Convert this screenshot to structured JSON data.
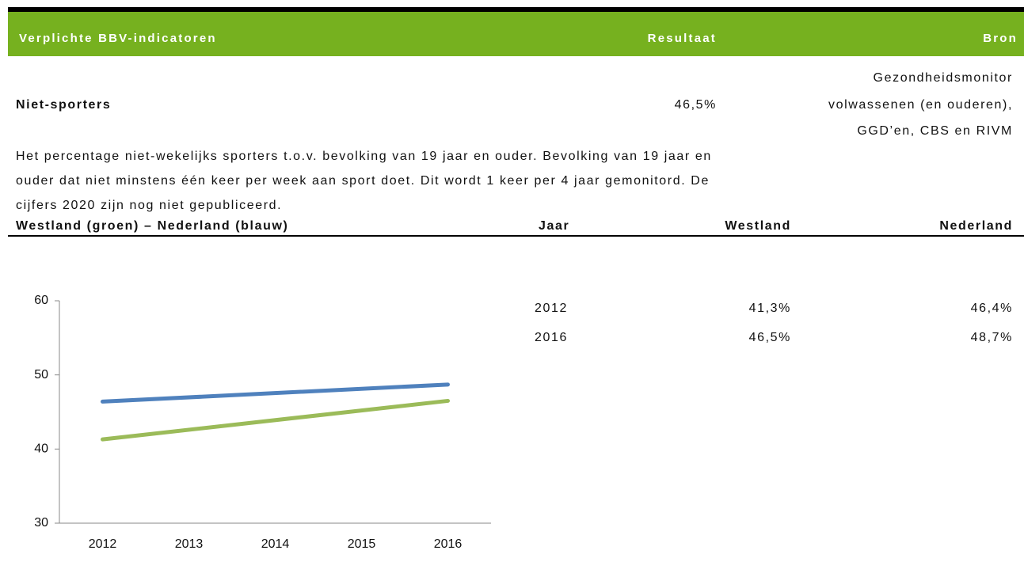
{
  "header": {
    "title": "Verplichte BBV-indicatoren",
    "result": "Resultaat",
    "source": "Bron"
  },
  "indicator": {
    "name": "Niet-sporters",
    "result": "46,5%",
    "source_lines": [
      "Gezondheidsmonitor",
      "volwassenen (en ouderen),",
      "GGD’en, CBS en RIVM"
    ]
  },
  "description_lines": [
    "Het percentage niet-wekelijks sporters t.o.v. bevolking van 19 jaar en ouder. Bevolking van 19 jaar en",
    "ouder dat niet minstens één keer per week aan sport doet. Dit wordt 1 keer per 4 jaar gemonitord. De",
    "cijfers 2020 zijn nog niet gepubliceerd."
  ],
  "subheader": {
    "chart_title": "Westland (groen) – Nederland (blauw)",
    "year": "Jaar",
    "westland": "Westland",
    "nederland": "Nederland"
  },
  "table": {
    "rows": [
      [
        "2012",
        "41,3%",
        "46,4%"
      ],
      [
        "2016",
        "46,5%",
        "48,7%"
      ]
    ]
  },
  "chart": {
    "type": "line",
    "x": [
      2012,
      2016
    ],
    "xlim": [
      2011.5,
      2016.5
    ],
    "xticks": [
      2012,
      2013,
      2014,
      2015,
      2016
    ],
    "ylim": [
      30,
      60
    ],
    "yticks": [
      30,
      40,
      50,
      60
    ],
    "series": [
      {
        "color": "#9bbb59",
        "values": [
          41.3,
          46.5
        ]
      },
      {
        "color": "#4f81bd",
        "values": [
          46.4,
          48.7
        ]
      }
    ]
  }
}
